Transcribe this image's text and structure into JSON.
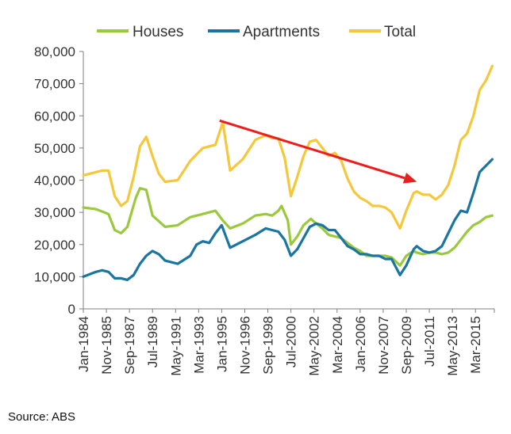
{
  "source_note": "Source: ABS",
  "chart_data": {
    "type": "line",
    "title": "",
    "xlabel": "",
    "ylabel": "",
    "ylim": [
      0,
      80000
    ],
    "yticks": [
      0,
      10000,
      20000,
      30000,
      40000,
      50000,
      60000,
      70000,
      80000
    ],
    "ytick_labels": [
      "0",
      "10,000",
      "20,000",
      "30,000",
      "40,000",
      "50,000",
      "60,000",
      "70,000",
      "80,000"
    ],
    "xlim": [
      "1984-01",
      "2016-09"
    ],
    "xtick_labels": [
      "Jan-1984",
      "Nov-1985",
      "Sep-1987",
      "Jul-1989",
      "May-1991",
      "Mar-1993",
      "Jan-1995",
      "Nov-1996",
      "Sep-1998",
      "Jul-2000",
      "May-2002",
      "Mar-2004",
      "Jan-2006",
      "Nov-2007",
      "Sep-2009",
      "Jul-2011",
      "May-2013",
      "Mar-2015"
    ],
    "xtick_dates": [
      "1984-01",
      "1985-11",
      "1987-09",
      "1989-07",
      "1991-05",
      "1993-03",
      "1995-01",
      "1996-11",
      "1998-09",
      "2000-07",
      "2002-05",
      "2004-03",
      "2006-01",
      "2007-11",
      "2009-09",
      "2011-07",
      "2013-05",
      "2015-03"
    ],
    "grid": false,
    "legend_position": "top",
    "series": [
      {
        "name": "Houses",
        "color": "#9ACA3C",
        "x": [
          "1984-01",
          "1985-01",
          "1986-01",
          "1986-07",
          "1987-01",
          "1987-07",
          "1988-03",
          "1988-07",
          "1989-01",
          "1989-07",
          "1990-07",
          "1991-07",
          "1992-07",
          "1993-07",
          "1994-07",
          "1995-02",
          "1995-09",
          "1996-09",
          "1997-09",
          "1998-07",
          "1999-01",
          "1999-07",
          "1999-10",
          "2000-04",
          "2000-07",
          "2001-01",
          "2001-07",
          "2002-02",
          "2002-07",
          "2003-01",
          "2003-07",
          "2004-01",
          "2004-07",
          "2005-01",
          "2005-07",
          "2006-01",
          "2006-07",
          "2007-01",
          "2007-07",
          "2008-01",
          "2008-07",
          "2009-03",
          "2009-09",
          "2010-04",
          "2010-07",
          "2011-01",
          "2011-07",
          "2012-01",
          "2012-07",
          "2013-01",
          "2013-07",
          "2014-01",
          "2014-07",
          "2015-01",
          "2015-07",
          "2016-01",
          "2016-07"
        ],
        "values": [
          31500,
          31000,
          29500,
          24500,
          23500,
          25500,
          34500,
          37500,
          37000,
          29000,
          25500,
          26000,
          28500,
          29500,
          30500,
          27500,
          25000,
          26500,
          29000,
          29500,
          29000,
          30500,
          32000,
          27500,
          20000,
          22500,
          26000,
          28000,
          26500,
          25000,
          23000,
          22500,
          22000,
          20500,
          19000,
          18000,
          16500,
          16500,
          16500,
          16500,
          16000,
          13500,
          16500,
          18000,
          17500,
          17000,
          17500,
          17500,
          17000,
          17500,
          19000,
          21500,
          24000,
          26000,
          27000,
          28500,
          29000
        ]
      },
      {
        "name": "Apartments",
        "color": "#1A75A3",
        "x": [
          "1984-01",
          "1985-01",
          "1985-07",
          "1986-01",
          "1986-07",
          "1987-01",
          "1987-07",
          "1988-01",
          "1988-07",
          "1989-01",
          "1989-07",
          "1990-01",
          "1990-07",
          "1991-07",
          "1992-07",
          "1993-01",
          "1993-07",
          "1994-01",
          "1994-07",
          "1995-01",
          "1995-09",
          "1996-09",
          "1997-09",
          "1998-07",
          "1999-01",
          "1999-07",
          "2000-01",
          "2000-07",
          "2001-01",
          "2001-07",
          "2002-01",
          "2002-07",
          "2003-01",
          "2003-07",
          "2004-01",
          "2004-07",
          "2005-01",
          "2005-07",
          "2006-01",
          "2006-07",
          "2007-01",
          "2007-07",
          "2008-01",
          "2008-07",
          "2009-03",
          "2009-09",
          "2010-04",
          "2010-07",
          "2011-01",
          "2011-07",
          "2012-01",
          "2012-07",
          "2013-01",
          "2013-07",
          "2014-01",
          "2014-07",
          "2015-01",
          "2015-07",
          "2016-01",
          "2016-07"
        ],
        "values": [
          10000,
          11500,
          12000,
          11500,
          9500,
          9500,
          9000,
          10500,
          14000,
          16500,
          18000,
          17000,
          15000,
          14000,
          16500,
          20000,
          21000,
          20500,
          23500,
          26000,
          19000,
          21000,
          23000,
          25000,
          24500,
          24000,
          21500,
          16500,
          18500,
          22000,
          25500,
          26500,
          26000,
          24500,
          24500,
          22000,
          19500,
          18500,
          17000,
          17000,
          16500,
          16500,
          15500,
          15500,
          10500,
          13500,
          18500,
          19500,
          18000,
          17500,
          18000,
          19500,
          23500,
          27500,
          30500,
          30000,
          36000,
          42500,
          44500,
          46500
        ]
      },
      {
        "name": "Total",
        "color": "#F5C83C",
        "x": [
          "1984-01",
          "1985-01",
          "1985-07",
          "1986-01",
          "1986-07",
          "1987-01",
          "1987-07",
          "1988-01",
          "1988-07",
          "1989-01",
          "1989-07",
          "1990-01",
          "1990-07",
          "1991-07",
          "1992-07",
          "1993-07",
          "1994-07",
          "1995-02",
          "1995-09",
          "1996-09",
          "1997-09",
          "1998-07",
          "1999-01",
          "1999-07",
          "2000-01",
          "2000-07",
          "2001-01",
          "2001-07",
          "2002-01",
          "2002-07",
          "2003-01",
          "2003-07",
          "2004-01",
          "2004-07",
          "2005-01",
          "2005-07",
          "2006-01",
          "2006-07",
          "2007-01",
          "2007-07",
          "2008-01",
          "2008-07",
          "2009-03",
          "2009-09",
          "2010-04",
          "2010-07",
          "2011-01",
          "2011-07",
          "2012-01",
          "2012-07",
          "2013-01",
          "2013-07",
          "2014-01",
          "2014-07",
          "2015-01",
          "2015-07",
          "2016-01",
          "2016-07"
        ],
        "values": [
          41500,
          42500,
          43000,
          43000,
          35000,
          32000,
          33500,
          41000,
          50500,
          53500,
          47500,
          42000,
          39500,
          40000,
          46000,
          50000,
          51000,
          58000,
          43000,
          46500,
          52500,
          54000,
          53000,
          53000,
          47000,
          35000,
          41000,
          47500,
          52000,
          52500,
          50000,
          47500,
          48500,
          46000,
          40500,
          36500,
          34500,
          33500,
          32000,
          32000,
          31500,
          30000,
          25000,
          30500,
          36000,
          36500,
          35500,
          35500,
          34000,
          35500,
          38500,
          44500,
          52500,
          54500,
          60000,
          68000,
          71000,
          75500
        ]
      }
    ],
    "annotations": [
      {
        "type": "arrow",
        "color": "#EE1C1C",
        "from": {
          "x": "1994-11",
          "y": 58500
        },
        "to": {
          "x": "2010-07",
          "y": 39500
        }
      }
    ]
  }
}
